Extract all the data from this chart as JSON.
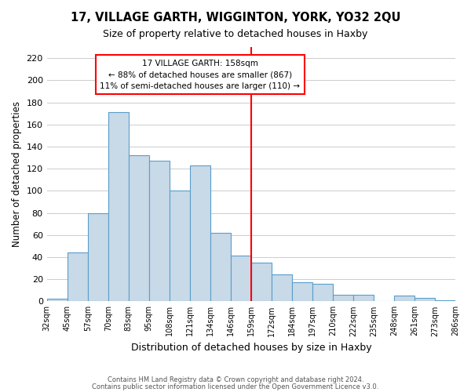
{
  "title1": "17, VILLAGE GARTH, WIGGINTON, YORK, YO32 2QU",
  "title2": "Size of property relative to detached houses in Haxby",
  "xlabel": "Distribution of detached houses by size in Haxby",
  "ylabel": "Number of detached properties",
  "footer1": "Contains HM Land Registry data © Crown copyright and database right 2024.",
  "footer2": "Contains public sector information licensed under the Open Government Licence v3.0.",
  "bin_labels": [
    "32sqm",
    "45sqm",
    "57sqm",
    "70sqm",
    "83sqm",
    "95sqm",
    "108sqm",
    "121sqm",
    "134sqm",
    "146sqm",
    "159sqm",
    "172sqm",
    "184sqm",
    "197sqm",
    "210sqm",
    "222sqm",
    "235sqm",
    "248sqm",
    "261sqm",
    "273sqm",
    "286sqm"
  ],
  "bar_heights": [
    2,
    44,
    80,
    171,
    132,
    127,
    100,
    123,
    62,
    41,
    35,
    24,
    17,
    16,
    6,
    6,
    0,
    5,
    3,
    1
  ],
  "bar_color": "#c8d9e8",
  "bar_edge_color": "#5a9ec9",
  "reference_line_x_label": "159sqm",
  "reference_line_color": "red",
  "annotation_title": "17 VILLAGE GARTH: 158sqm",
  "annotation_line1": "← 88% of detached houses are smaller (867)",
  "annotation_line2": "11% of semi-detached houses are larger (110) →",
  "annotation_box_edge_color": "red",
  "ylim": [
    0,
    230
  ],
  "yticks": [
    0,
    20,
    40,
    60,
    80,
    100,
    120,
    140,
    160,
    180,
    200,
    220
  ],
  "background_color": "#ffffff",
  "grid_color": "#cccccc"
}
